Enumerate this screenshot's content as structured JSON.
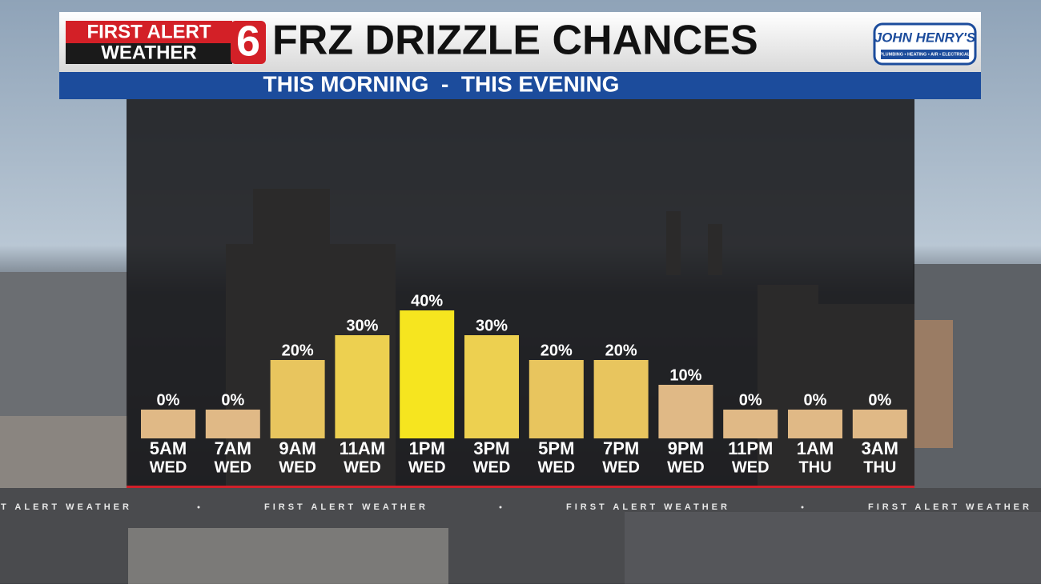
{
  "chart_data": {
    "type": "bar",
    "brand": {
      "line1": "FIRST ALERT",
      "line2": "WEATHER",
      "channel": "6"
    },
    "title": "FRZ DRIZZLE CHANCES",
    "subtitle": "THIS MORNING  -  THIS EVENING",
    "sponsor": {
      "name": "JOHN HENRY'S",
      "tagline": "PLUMBING • HEATING • AIR • ELECTRICAL"
    },
    "categories": [
      [
        "5AM",
        "WED"
      ],
      [
        "7AM",
        "WED"
      ],
      [
        "9AM",
        "WED"
      ],
      [
        "11AM",
        "WED"
      ],
      [
        "1PM",
        "WED"
      ],
      [
        "3PM",
        "WED"
      ],
      [
        "5PM",
        "WED"
      ],
      [
        "7PM",
        "WED"
      ],
      [
        "9PM",
        "WED"
      ],
      [
        "11PM",
        "WED"
      ],
      [
        "1AM",
        "THU"
      ],
      [
        "3AM",
        "THU"
      ]
    ],
    "values": [
      0,
      0,
      20,
      30,
      40,
      30,
      20,
      20,
      10,
      0,
      0,
      0
    ],
    "value_labels": [
      "0%",
      "0%",
      "20%",
      "30%",
      "40%",
      "30%",
      "20%",
      "20%",
      "10%",
      "0%",
      "0%",
      "0%"
    ],
    "colors": [
      "#e0b986",
      "#e0b986",
      "#e8c55e",
      "#edd050",
      "#f6e51f",
      "#edd050",
      "#e8c55e",
      "#e8c55e",
      "#e0b986",
      "#e0b986",
      "#e0b986",
      "#e0b986"
    ],
    "ticker": "FIRST ALERT WEATHER"
  }
}
